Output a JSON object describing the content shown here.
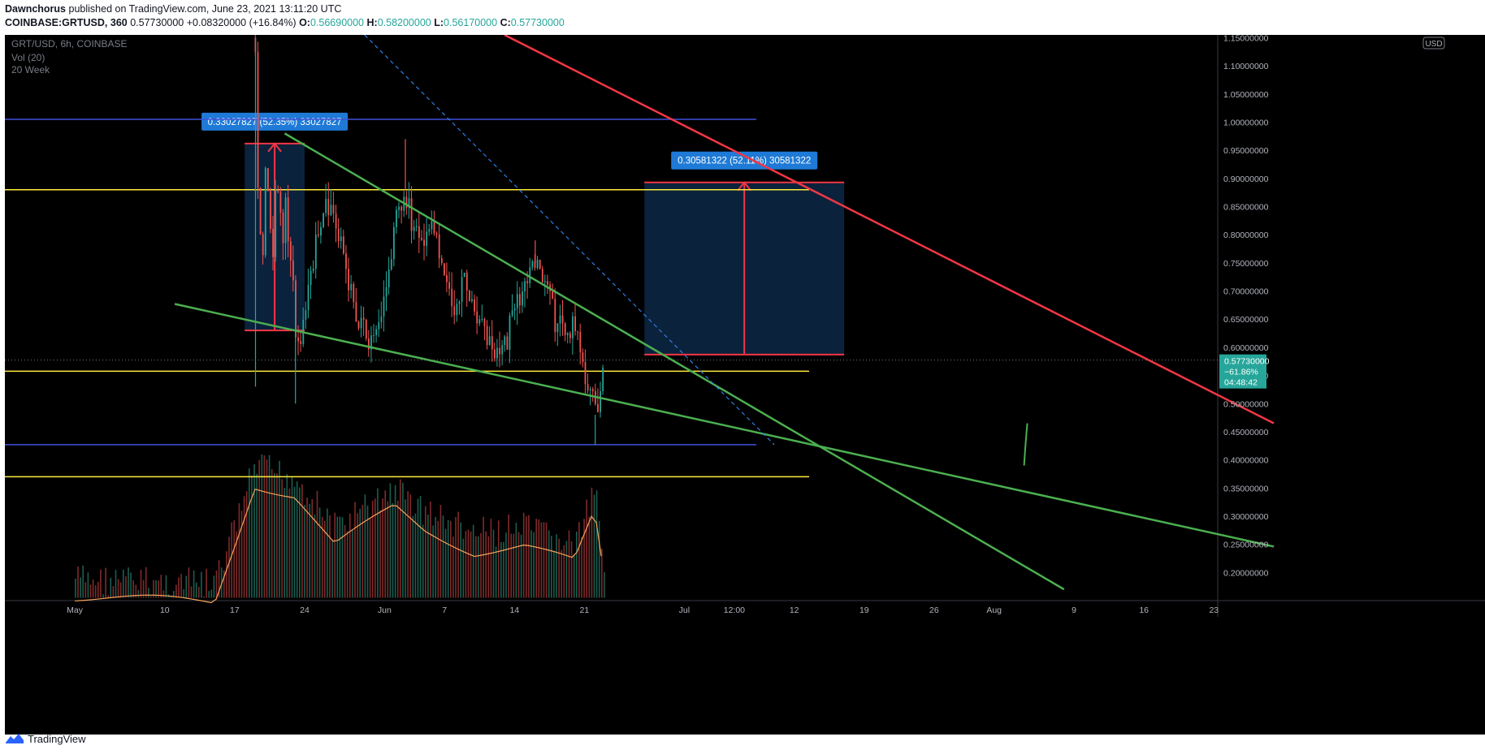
{
  "header": {
    "author": "Dawnchorus",
    "published_text": "published on TradingView.com, June 23, 2021 13:11:20 UTC",
    "symbol_line": "COINBASE:GRTUSD, 360",
    "price_line": "0.57730000",
    "change": "+0.08320000 (+16.84%)",
    "o_label": "O:",
    "o_value": "0.56690000",
    "h_label": "H:",
    "h_value": "0.58200000",
    "l_label": "L:",
    "l_value": "0.56170000",
    "c_label": "C:",
    "c_value": "0.57730000"
  },
  "footer": {
    "brand": "TradingView"
  },
  "colors": {
    "background": "#000000",
    "up": "#26a69a",
    "down": "#ef5350",
    "vol_up": "#1b5e50",
    "vol_down": "#7f2a2a",
    "ma": "#f7a35c",
    "green_line": "#4caf50",
    "red_line": "#f23645",
    "yellow_line": "#ffeb3b",
    "blue_line": "#3f51d9",
    "box_fill": "#0d2847",
    "label_bg": "#1e7ad6",
    "current_price_bg": "#26a69a"
  },
  "chart_data": {
    "type": "candlestick",
    "symbol": "GRT/USD, 6h, COINBASE",
    "indicators": [
      "Vol (20)",
      "20 Week"
    ],
    "currency_label": "USD",
    "y_axis": {
      "ticks": [
        "1.15000000",
        "1.10000000",
        "1.05000000",
        "1.00000000",
        "0.95000000",
        "0.90000000",
        "0.85000000",
        "0.80000000",
        "0.75000000",
        "0.70000000",
        "0.65000000",
        "0.60000000",
        "0.55000000",
        "0.50000000",
        "0.45000000",
        "0.40000000",
        "0.35000000",
        "0.30000000",
        "0.25000000",
        "0.20000000"
      ],
      "ylim": [
        0.15,
        1.155
      ]
    },
    "x_axis": {
      "ticks": [
        "May",
        "10",
        "17",
        "24",
        "Jun",
        "7",
        "14",
        "21",
        "Jul",
        "12:00",
        "12",
        "19",
        "26",
        "Aug",
        "9",
        "16",
        "23"
      ]
    },
    "current_price": {
      "value": "0.57730000",
      "change": "−61.86%",
      "countdown": "04:48:42"
    },
    "price_path": [
      [
        "2021-05-19",
        1.15
      ],
      [
        "2021-05-19",
        0.96
      ],
      [
        "2021-05-20",
        0.68
      ],
      [
        "2021-05-20",
        0.92
      ],
      [
        "2021-05-21",
        0.74
      ],
      [
        "2021-05-21",
        0.88
      ],
      [
        "2021-05-22",
        0.78
      ],
      [
        "2021-05-22",
        0.85
      ],
      [
        "2021-05-23",
        0.7
      ],
      [
        "2021-05-23",
        0.6
      ],
      [
        "2021-05-24",
        0.65
      ],
      [
        "2021-05-25",
        0.78
      ],
      [
        "2021-05-26",
        0.86
      ],
      [
        "2021-05-27",
        0.83
      ],
      [
        "2021-05-28",
        0.74
      ],
      [
        "2021-05-29",
        0.66
      ],
      [
        "2021-05-30",
        0.62
      ],
      [
        "2021-05-31",
        0.6
      ],
      [
        "2021-06-01",
        0.7
      ],
      [
        "2021-06-02",
        0.82
      ],
      [
        "2021-06-03",
        0.88
      ],
      [
        "2021-06-04",
        0.8
      ],
      [
        "2021-06-05",
        0.8
      ],
      [
        "2021-06-06",
        0.82
      ],
      [
        "2021-06-07",
        0.72
      ],
      [
        "2021-06-08",
        0.66
      ],
      [
        "2021-06-09",
        0.72
      ],
      [
        "2021-06-10",
        0.66
      ],
      [
        "2021-06-11",
        0.62
      ],
      [
        "2021-06-12",
        0.58
      ],
      [
        "2021-06-13",
        0.6
      ],
      [
        "2021-06-14",
        0.68
      ],
      [
        "2021-06-15",
        0.71
      ],
      [
        "2021-06-16",
        0.75
      ],
      [
        "2021-06-17",
        0.7
      ],
      [
        "2021-06-18",
        0.65
      ],
      [
        "2021-06-19",
        0.62
      ],
      [
        "2021-06-20",
        0.65
      ],
      [
        "2021-06-21",
        0.56
      ],
      [
        "2021-06-22",
        0.48
      ],
      [
        "2021-06-23",
        0.5773
      ]
    ],
    "wick_extremes": [
      [
        "2021-05-19",
        1.15
      ],
      [
        "2021-05-19",
        0.53
      ],
      [
        "2021-05-23",
        0.5
      ],
      [
        "2021-06-03",
        0.97
      ],
      [
        "2021-06-16",
        0.79
      ],
      [
        "2021-06-22",
        0.427
      ]
    ],
    "volume_path": [
      [
        "2021-05-01",
        0.2
      ],
      [
        "2021-05-15",
        0.19
      ],
      [
        "2021-05-19",
        0.4
      ],
      [
        "2021-05-23",
        0.38
      ],
      [
        "2021-05-27",
        0.29
      ],
      [
        "2021-06-02",
        0.36
      ],
      [
        "2021-06-05",
        0.32
      ],
      [
        "2021-06-10",
        0.28
      ],
      [
        "2021-06-15",
        0.29
      ],
      [
        "2021-06-20",
        0.26
      ],
      [
        "2021-06-22",
        0.35
      ],
      [
        "2021-06-23",
        0.23
      ]
    ],
    "horizontal_lines": [
      {
        "name": "blue-upper",
        "y": 1.005,
        "color": "blue"
      },
      {
        "name": "yellow-upper",
        "y": 0.88,
        "color": "yellow"
      },
      {
        "name": "yellow-mid",
        "y": 0.5575,
        "color": "yellow"
      },
      {
        "name": "blue-lower",
        "y": 0.427,
        "color": "blue"
      },
      {
        "name": "yellow-lower",
        "y": 0.37,
        "color": "yellow"
      }
    ],
    "trend_lines": [
      {
        "name": "green-upper",
        "from": [
          "2021-05-22",
          0.98
        ],
        "to": [
          "2021-08-08",
          0.17
        ],
        "color": "green"
      },
      {
        "name": "green-lower",
        "from": [
          "2021-05-11",
          0.677
        ],
        "to": [
          "2021-08-29",
          0.246
        ],
        "color": "green"
      },
      {
        "name": "red-resistance",
        "from": [
          "2021-06-13",
          1.155
        ],
        "to": [
          "2021-08-29",
          0.465
        ],
        "color": "red"
      },
      {
        "name": "blue-dashed",
        "from": [
          "2021-05-30",
          1.155
        ],
        "to": [
          "2021-07-10",
          0.427
        ],
        "color": "blue",
        "dashed": true
      }
    ],
    "measurements": [
      {
        "name": "measure-1",
        "label": "0.33027827 (52.35%) 33027827",
        "from": [
          "2021-05-18",
          0.63
        ],
        "to": [
          "2021-05-24",
          0.962
        ]
      },
      {
        "name": "measure-2",
        "label": "0.30581322 (52.11%) 30581322",
        "from": [
          "2021-06-27",
          0.587
        ],
        "to": [
          "2021-07-17",
          0.893
        ]
      }
    ]
  }
}
